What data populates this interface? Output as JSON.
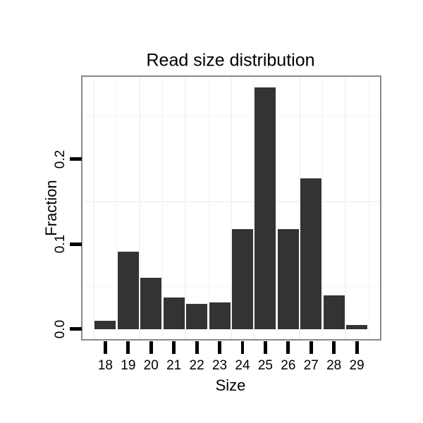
{
  "chart_data": {
    "type": "bar",
    "title": "Read size distribution",
    "xlabel": "Size",
    "ylabel": "Fraction",
    "categories": [
      "18",
      "19",
      "20",
      "21",
      "22",
      "23",
      "24",
      "25",
      "26",
      "27",
      "28",
      "29"
    ],
    "values": [
      0.01,
      0.091,
      0.06,
      0.037,
      0.03,
      0.031,
      0.118,
      0.284,
      0.118,
      0.177,
      0.04,
      0.005
    ],
    "y_ticks": [
      {
        "value": 0.0,
        "label": "0.0"
      },
      {
        "value": 0.1,
        "label": "0.1"
      },
      {
        "value": 0.2,
        "label": "0.2"
      }
    ],
    "y_minor_gridlines": [
      0.05,
      0.15,
      0.25
    ],
    "x_minor_gridlines": [
      17.5,
      18.5,
      19.5,
      20.5,
      21.5,
      22.5,
      23.5,
      24.5,
      25.5,
      26.5,
      27.5,
      28.5,
      29.5
    ],
    "ylim": [
      -0.012,
      0.297
    ],
    "bar_width_fraction": 0.925,
    "grid": "minor gridlines only, very light gray, horizontal and vertical",
    "legend": "none",
    "colors": {
      "bar": "#333333",
      "minor_grid": "#f4f4f4",
      "panel_border": "#898989",
      "axis_tick": "#000000",
      "text": "#000000",
      "panel_background": "#ffffff",
      "figure_background": "#ffffff"
    }
  }
}
